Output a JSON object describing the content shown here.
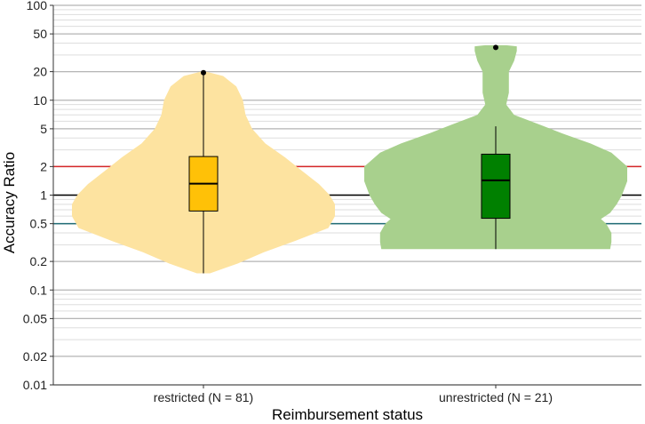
{
  "chart_data": {
    "type": "violin",
    "xlabel": "Reimbursement status",
    "ylabel": "Accuracy Ratio",
    "yscale": "log",
    "ylim": [
      0.01,
      100
    ],
    "ytick_labels": [
      "0.01",
      "0.02",
      "0.05",
      "0.1",
      "0.2",
      "0.5",
      "1",
      "2",
      "5",
      "10",
      "20",
      "50",
      "100"
    ],
    "grid": true,
    "reference_lines": [
      {
        "y": 2,
        "color": "#d62728"
      },
      {
        "y": 1,
        "color": "#000000"
      },
      {
        "y": 0.5,
        "color": "#1f6b75"
      }
    ],
    "categories": [
      {
        "label": "restricted (N = 81)",
        "violin_color": "#fde3a0",
        "box_color": "#ffc107",
        "whisker_low": 0.15,
        "q1": 0.68,
        "median": 1.32,
        "q3": 2.55,
        "whisker_high": 19,
        "outliers": [
          19.5
        ],
        "density": [
          [
            0.15,
            0.05
          ],
          [
            0.19,
            0.26
          ],
          [
            0.25,
            0.46
          ],
          [
            0.33,
            0.7
          ],
          [
            0.45,
            0.95
          ],
          [
            0.6,
            1.0
          ],
          [
            0.8,
            1.0
          ],
          [
            1.0,
            0.96
          ],
          [
            1.3,
            0.88
          ],
          [
            1.8,
            0.75
          ],
          [
            2.5,
            0.62
          ],
          [
            3.5,
            0.47
          ],
          [
            5,
            0.37
          ],
          [
            7,
            0.32
          ],
          [
            10,
            0.3
          ],
          [
            14,
            0.25
          ],
          [
            18,
            0.15
          ],
          [
            20,
            0.02
          ]
        ]
      },
      {
        "label": "unrestricted (N = 21)",
        "violin_color": "#a8d08d",
        "box_color": "#008000",
        "whisker_low": 0.27,
        "q1": 0.57,
        "median": 1.43,
        "q3": 2.7,
        "whisker_high": 5.3,
        "outliers": [
          36
        ],
        "density": [
          [
            0.27,
            0.87
          ],
          [
            0.32,
            0.88
          ],
          [
            0.4,
            0.88
          ],
          [
            0.5,
            0.84
          ],
          [
            0.56,
            0.8
          ],
          [
            0.65,
            0.87
          ],
          [
            0.8,
            0.92
          ],
          [
            1.0,
            0.96
          ],
          [
            1.4,
            1.0
          ],
          [
            2.0,
            1.0
          ],
          [
            2.8,
            0.88
          ],
          [
            3.5,
            0.72
          ],
          [
            4.5,
            0.5
          ],
          [
            5.5,
            0.34
          ],
          [
            7,
            0.14
          ],
          [
            9,
            0.08
          ],
          [
            12,
            0.1
          ],
          [
            16,
            0.1
          ],
          [
            20,
            0.1
          ],
          [
            26,
            0.14
          ],
          [
            33,
            0.16
          ],
          [
            37,
            0.16
          ],
          [
            38,
            0.08
          ]
        ]
      }
    ]
  }
}
